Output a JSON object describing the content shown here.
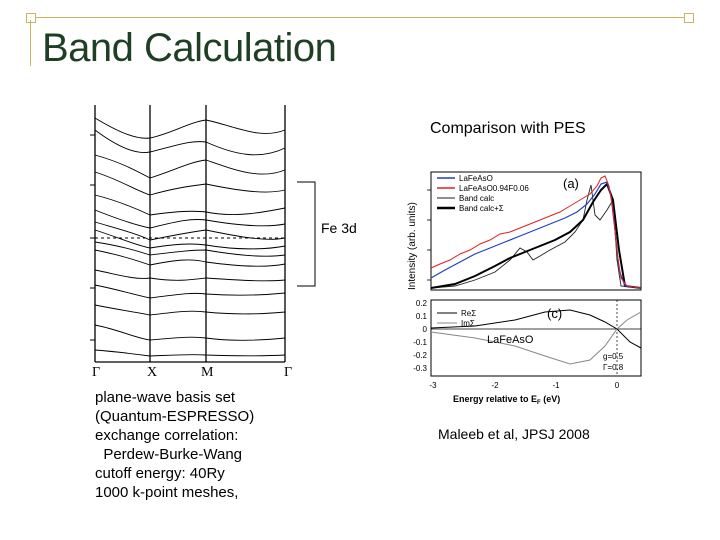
{
  "slide": {
    "title": "Band Calculation",
    "pes_title": "Comparison with PES",
    "fe3d_label": "Fe 3d",
    "kpoints": [
      "Γ",
      "X",
      "M",
      "Γ"
    ],
    "params": [
      "plane-wave basis set",
      "(Quantum-ESPRESSO)",
      "exchange correlation:",
      "  Perdew-Burke-Wang",
      "cutoff energy: 40Ry",
      "1000 k-point meshes,"
    ],
    "reference": "Maleeb et al, JPSJ 2008"
  },
  "figure": {
    "panel_a_label": "(a)",
    "panel_c_label": "(c)",
    "ylabel_a": "Intensity (arb. units)",
    "xlabel": "Energy relative to E",
    "xlabel_sub": "F",
    "xlabel_unit": " (eV)",
    "legend_a": [
      {
        "name": "LaFeAsO",
        "color": "#1f3fc8"
      },
      {
        "name": "LaFeAsO0.94F0.06",
        "color": "#e02020"
      },
      {
        "name": "Band calc",
        "color": "#222222"
      },
      {
        "name": "Band calc+Σ",
        "color": "#000000"
      }
    ],
    "legend_c": [
      {
        "name": "ReΣ"
      },
      {
        "name": "ImΣ"
      }
    ],
    "c_material": "LaFeAsO",
    "c_params": [
      "g=0.5",
      "Γ=0.8"
    ],
    "c_yticks": [
      "0.2",
      "0.1",
      "0",
      "-0.1",
      "-0.2",
      "-0.3"
    ],
    "xticks": [
      "-3",
      "-2",
      "-1",
      "0"
    ]
  }
}
